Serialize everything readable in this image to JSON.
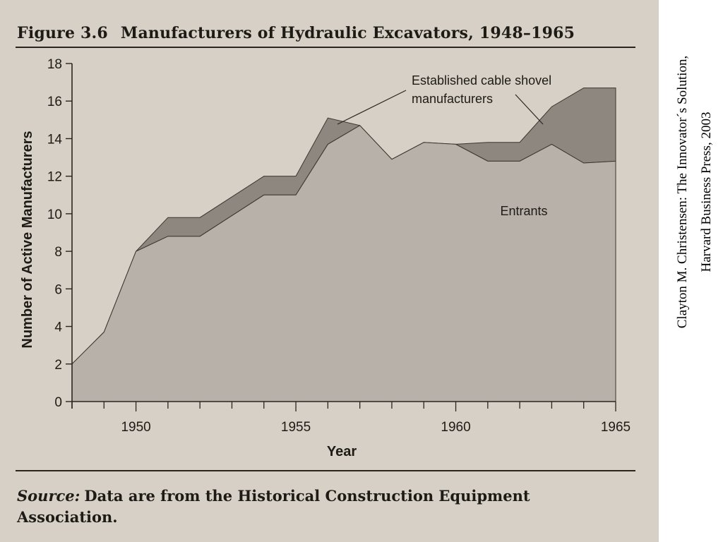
{
  "figure": {
    "number": "Figure 3.6",
    "title": "Manufacturers of Hydraulic Excavators, 1948–1965"
  },
  "source_note": {
    "label": "Source:",
    "text": "Data are from the Historical Construction Equipment Association."
  },
  "side_citation": {
    "line1": "Clayton M. Christensen: The Innovator´s Solution,",
    "line2": "Harvard Business Press, 2003"
  },
  "colors": {
    "background": "#d6d0c6",
    "entrants_fill": "#b7b1a9",
    "established_fill": "#8d8780",
    "ink": "#1e1a16"
  },
  "chart_data": {
    "type": "area",
    "stacked": true,
    "xlabel": "Year",
    "ylabel": "Number of Active Manufacturers",
    "xlim": [
      1948,
      1965
    ],
    "ylim": [
      0,
      18
    ],
    "x_ticks": [
      1950,
      1955,
      1960,
      1965
    ],
    "y_ticks": [
      0,
      2,
      4,
      6,
      8,
      10,
      12,
      14,
      16,
      18
    ],
    "grid": false,
    "x": [
      1948,
      1949,
      1950,
      1951,
      1952,
      1953,
      1954,
      1955,
      1956,
      1957,
      1958,
      1959,
      1960,
      1961,
      1962,
      1963,
      1964,
      1965
    ],
    "series": [
      {
        "name": "Entrants",
        "values": [
          2,
          3.7,
          8,
          8.8,
          8.8,
          9.9,
          11,
          11,
          13.7,
          14.7,
          12.9,
          13.8,
          13.7,
          12.8,
          12.8,
          13.7,
          12.7,
          12.8
        ]
      },
      {
        "name": "Established cable shovel manufacturers",
        "values": [
          0,
          0,
          0,
          1,
          1,
          1,
          1,
          1,
          1.4,
          0,
          0,
          0,
          0,
          1,
          1,
          2,
          4,
          3.9
        ]
      }
    ],
    "annotations": [
      {
        "text_lines": [
          "Established cable shovel",
          "manufacturers"
        ],
        "series": "Established cable shovel manufacturers"
      },
      {
        "text_lines": [
          "Entrants"
        ],
        "series": "Entrants"
      }
    ]
  }
}
